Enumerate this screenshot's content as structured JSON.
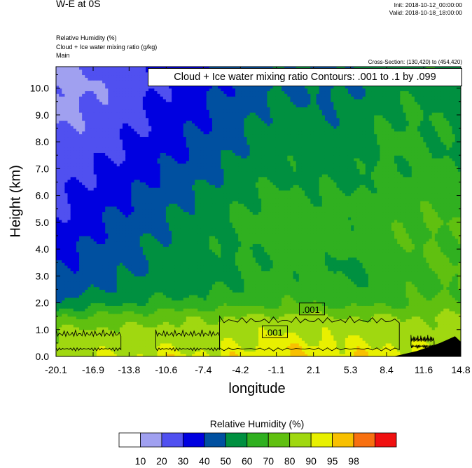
{
  "header": {
    "title": "W-E at 0S",
    "init": "Init: 2018-10-12_00:00:00",
    "valid": "Valid: 2018-10-18_18:00:00",
    "field1": "Relative Humidity   (%)",
    "field2": "Cloud + Ice water mixing ratio   (g/kg)",
    "field3": "Main",
    "cross_section": "Cross-Section: (130,420) to (454,420)"
  },
  "contour_box": "Cloud + Ice water mixing ratio Contours: .001 to .1 by .099",
  "contour_labels": [
    ".001",
    ".001"
  ],
  "colorbar": {
    "title": "Relative Humidity  (%)",
    "levels": [
      "10",
      "20",
      "30",
      "40",
      "50",
      "60",
      "70",
      "80",
      "90",
      "95",
      "98"
    ],
    "colors": [
      "#ffffff",
      "#a0a0f0",
      "#5050f0",
      "#0000e0",
      "#0050a0",
      "#009040",
      "#30b020",
      "#60c010",
      "#a0d810",
      "#e8f000",
      "#f8c000",
      "#f87010",
      "#f01010"
    ]
  },
  "chart_data": {
    "type": "heatmap",
    "title": "",
    "xlabel": "longitude",
    "ylabel": "Height (km)",
    "x_ticks": [
      "-20.1",
      "-16.9",
      "-13.8",
      "-10.6",
      "-7.4",
      "-4.2",
      "-1.1",
      "2.1",
      "5.3",
      "8.4",
      "11.6",
      "14.8"
    ],
    "y_ticks": [
      "0.0",
      "1.0",
      "2.0",
      "3.0",
      "4.0",
      "5.0",
      "6.0",
      "7.0",
      "8.0",
      "9.0",
      "10.0"
    ],
    "xlim": [
      -20.1,
      14.8
    ],
    "ylim": [
      0.0,
      10.8
    ],
    "z_label": "Relative Humidity (%)",
    "z_levels": [
      10,
      20,
      30,
      40,
      50,
      60,
      70,
      80,
      90,
      95,
      98
    ],
    "height_levels_km": [
      0.0,
      0.5,
      1.0,
      1.5,
      2.0,
      2.5,
      3.0,
      3.5,
      4.0,
      5.0,
      6.0,
      7.0,
      8.0,
      9.0,
      10.0,
      10.8
    ],
    "longitude_columns": [
      -20.1,
      -16.9,
      -13.8,
      -10.6,
      -7.4,
      -4.2,
      -1.1,
      2.1,
      5.3,
      8.4,
      11.6,
      14.8
    ],
    "rh_percent": [
      [
        88,
        90,
        90,
        92,
        92,
        92,
        94,
        94,
        94,
        94,
        92,
        92
      ],
      [
        84,
        86,
        86,
        88,
        88,
        90,
        92,
        92,
        90,
        90,
        88,
        88
      ],
      [
        80,
        82,
        82,
        84,
        84,
        86,
        88,
        88,
        86,
        86,
        84,
        84
      ],
      [
        70,
        72,
        74,
        76,
        78,
        80,
        82,
        82,
        80,
        80,
        80,
        82
      ],
      [
        50,
        56,
        60,
        62,
        64,
        66,
        68,
        70,
        66,
        68,
        70,
        74
      ],
      [
        44,
        50,
        54,
        56,
        58,
        62,
        64,
        66,
        62,
        66,
        68,
        72
      ],
      [
        40,
        46,
        50,
        54,
        56,
        60,
        62,
        64,
        58,
        66,
        68,
        70
      ],
      [
        40,
        44,
        48,
        52,
        56,
        60,
        62,
        64,
        58,
        66,
        70,
        72
      ],
      [
        36,
        42,
        48,
        52,
        56,
        60,
        64,
        66,
        62,
        66,
        70,
        70
      ],
      [
        30,
        38,
        44,
        50,
        56,
        62,
        66,
        66,
        64,
        68,
        70,
        70
      ],
      [
        28,
        34,
        40,
        46,
        52,
        58,
        62,
        62,
        60,
        66,
        66,
        64
      ],
      [
        26,
        30,
        34,
        40,
        46,
        54,
        58,
        56,
        56,
        62,
        62,
        60
      ],
      [
        22,
        26,
        30,
        36,
        42,
        50,
        56,
        54,
        54,
        62,
        62,
        58
      ],
      [
        18,
        22,
        28,
        34,
        40,
        48,
        54,
        52,
        52,
        60,
        60,
        56
      ],
      [
        16,
        20,
        26,
        32,
        38,
        44,
        50,
        48,
        50,
        56,
        58,
        54
      ],
      [
        16,
        20,
        26,
        32,
        38,
        44,
        50,
        48,
        50,
        56,
        58,
        54
      ]
    ],
    "cloud_contour_gkg": 0.001,
    "cloud_regions": [
      {
        "x0": -20.1,
        "x1": -14.5,
        "z0": 0.2,
        "z1": 1.0
      },
      {
        "x0": -11.5,
        "x1": -6.0,
        "z0": 0.2,
        "z1": 1.0
      },
      {
        "x0": -6.0,
        "x1": 9.5,
        "z0": 0.2,
        "z1": 1.5
      },
      {
        "x0": 10.5,
        "x1": 12.5,
        "z0": 0.3,
        "z1": 0.8
      }
    ],
    "terrain": [
      {
        "x": 9.0,
        "z": 0.0
      },
      {
        "x": 11.0,
        "z": 0.2
      },
      {
        "x": 13.0,
        "z": 0.5
      },
      {
        "x": 14.3,
        "z": 0.75
      },
      {
        "x": 14.8,
        "z": 0.55
      }
    ]
  }
}
